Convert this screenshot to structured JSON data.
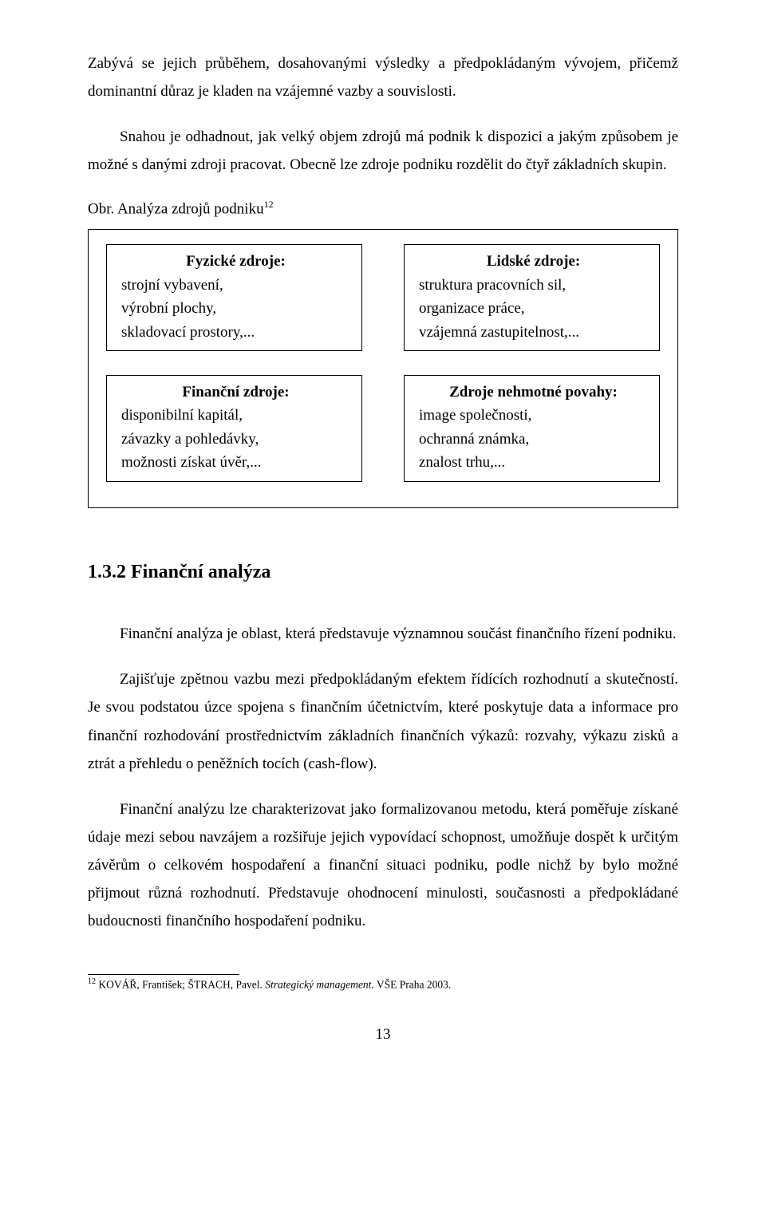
{
  "paragraphs": {
    "p1": "Zabývá se jejich průběhem, dosahovanými výsledky a předpokládaným vývojem, přičemž dominantní důraz je kladen na vzájemné vazby a souvislosti.",
    "p2": "Snahou je odhadnout, jak velký objem zdrojů má podnik k dispozici a jakým způsobem je možné s danými zdroji pracovat. Obecně lze zdroje podniku rozdělit do čtyř základních skupin."
  },
  "figure": {
    "caption_prefix": "Obr. Analýza zdrojů podniku",
    "caption_ref": "12",
    "boxes": [
      {
        "title": "Fyzické zdroje:",
        "body": "strojní vybavení,\nvýrobní plochy,\nskladovací prostory,..."
      },
      {
        "title": "Lidské zdroje:",
        "body": "struktura pracovních sil,\norganizace práce,\n vzájemná zastupitelnost,..."
      },
      {
        "title": "Finanční zdroje:",
        "body": "disponibilní kapitál,\nzávazky a pohledávky,\nmožnosti získat úvěr,..."
      },
      {
        "title": "Zdroje nehmotné povahy:",
        "body": "image společnosti,\nochranná známka,\nznalost trhu,..."
      }
    ]
  },
  "section": {
    "number": "1.3.2",
    "title": "Finanční analýza"
  },
  "paragraphs2": {
    "p3": "Finanční analýza je oblast, která představuje významnou součást finančního řízení podniku.",
    "p4": "Zajišťuje zpětnou vazbu mezi předpokládaným efektem řídících rozhodnutí a skutečností. Je svou podstatou úzce spojena s finančním účetnictvím, které poskytuje data a informace pro finanční rozhodování prostřednictvím základních finančních výkazů: rozvahy, výkazu zisků a ztrát a přehledu o peněžních tocích (cash-flow).",
    "p5": "Finanční analýzu lze charakterizovat jako formalizovanou metodu, která poměřuje získané údaje mezi sebou navzájem a rozšiřuje jejich vypovídací schopnost, umožňuje dospět k určitým závěrům o celkovém hospodaření a finanční situaci podniku, podle nichž by bylo možné přijmout různá rozhodnutí. Představuje ohodnocení minulosti, současnosti a předpokládané budoucnosti finančního hospodaření podniku."
  },
  "footnote": {
    "mark": "12",
    "text_pre": " KOVÁŘ, František; ŠTRACH, Pavel. ",
    "text_italic": "Strategický management.",
    "text_post": " VŠE Praha 2003."
  },
  "page_number": "13"
}
